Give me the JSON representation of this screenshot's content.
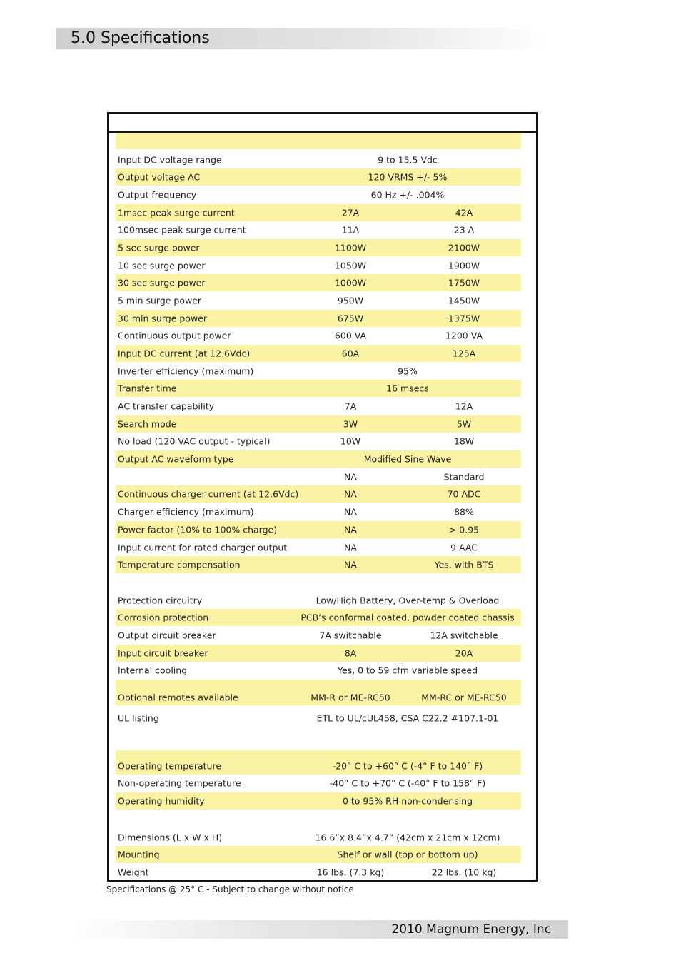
{
  "header": {
    "title": "5.0 Specifications"
  },
  "table": {
    "rows": [
      {
        "label": "Input DC voltage range",
        "value": "9 to 15.5 Vdc"
      },
      {
        "label": "Output voltage AC",
        "value": "120 VRMS +/- 5%"
      },
      {
        "label": "Output frequency",
        "value": "60 Hz +/- .004%"
      },
      {
        "label": "1msec peak surge current",
        "values": [
          "27A",
          "42A"
        ]
      },
      {
        "label": "100msec peak surge current",
        "values": [
          "11A",
          "23 A"
        ]
      },
      {
        "label": "5 sec surge power",
        "values": [
          "1100W",
          "2100W"
        ]
      },
      {
        "label": "10 sec surge power",
        "values": [
          "1050W",
          "1900W"
        ]
      },
      {
        "label": "30 sec surge power",
        "values": [
          "1000W",
          "1750W"
        ]
      },
      {
        "label": "5 min surge power",
        "values": [
          "950W",
          "1450W"
        ]
      },
      {
        "label": "30 min surge power",
        "values": [
          "675W",
          "1375W"
        ]
      },
      {
        "label": "Continuous output power",
        "values": [
          "600 VA",
          "1200 VA"
        ]
      },
      {
        "label": "Input DC current (at 12.6Vdc)",
        "values": [
          "60A",
          "125A"
        ]
      },
      {
        "label": "Inverter efficiency (maximum)",
        "value": "95%"
      },
      {
        "label": "Transfer time",
        "value": "16 msecs"
      },
      {
        "label": "AC transfer capability",
        "values": [
          "7A",
          "12A"
        ]
      },
      {
        "label": "Search mode",
        "values": [
          "3W",
          "5W"
        ]
      },
      {
        "label": "No load (120 VAC output - typical)",
        "values": [
          "10W",
          "18W"
        ]
      },
      {
        "label": "Output AC waveform type",
        "value": "Modified Sine Wave"
      },
      {
        "values": [
          "NA",
          "Standard"
        ]
      },
      {
        "label": "Continuous charger current (at 12.6Vdc)",
        "values": [
          "NA",
          "70 ADC"
        ]
      },
      {
        "label": "Charger efficiency (maximum)",
        "values": [
          "NA",
          "88%"
        ]
      },
      {
        "label": "Power factor (10% to 100% charge)",
        "values": [
          "NA",
          "> 0.95"
        ]
      },
      {
        "label": "Input current for rated charger output",
        "values": [
          "NA",
          "9 AAC"
        ]
      },
      {
        "label": "Temperature compensation",
        "values": [
          "NA",
          "Yes, with BTS"
        ]
      },
      {
        "label": "Protection circuitry",
        "value": "Low/High Battery, Over-temp & Overload"
      },
      {
        "label": "Corrosion protection",
        "value": "PCB’s conformal coated, powder coated chassis"
      },
      {
        "label": "Output circuit breaker",
        "values": [
          "7A switchable",
          "12A switchable"
        ]
      },
      {
        "label": "Input circuit breaker",
        "values": [
          "8A",
          "20A"
        ]
      },
      {
        "label": "Internal cooling",
        "value": "Yes, 0 to 59 cfm variable speed"
      },
      {
        "label": "Optional remotes available",
        "values": [
          "MM-R or ME-RC50",
          "MM-RC or ME-RC50"
        ]
      },
      {
        "label": "UL listing",
        "value": "ETL to UL/cUL458, CSA C22.2 #107.1-01"
      },
      {
        "label": "Operating temperature",
        "value": "-20° C to +60° C (-4° F to 140° F)"
      },
      {
        "label": "Non-operating temperature",
        "value": "-40° C to +70° C (-40° F to 158° F)"
      },
      {
        "label": "Operating humidity",
        "value": "0 to 95% RH non-condensing"
      },
      {
        "label": "Dimensions (L x W x H)",
        "value": "16.6”x 8.4”x 4.7” (42cm x 21cm x 12cm)"
      },
      {
        "label": "Mounting",
        "value": "Shelf or wall (top or bottom up)"
      },
      {
        "label": "Weight",
        "values": [
          "16 lbs. (7.3 kg)",
          "22 lbs. (10 kg)"
        ]
      }
    ]
  },
  "footnote": "Specifications @ 25° C  - Subject to change without notice",
  "footer": {
    "text": "2010 Magnum Energy, Inc"
  }
}
